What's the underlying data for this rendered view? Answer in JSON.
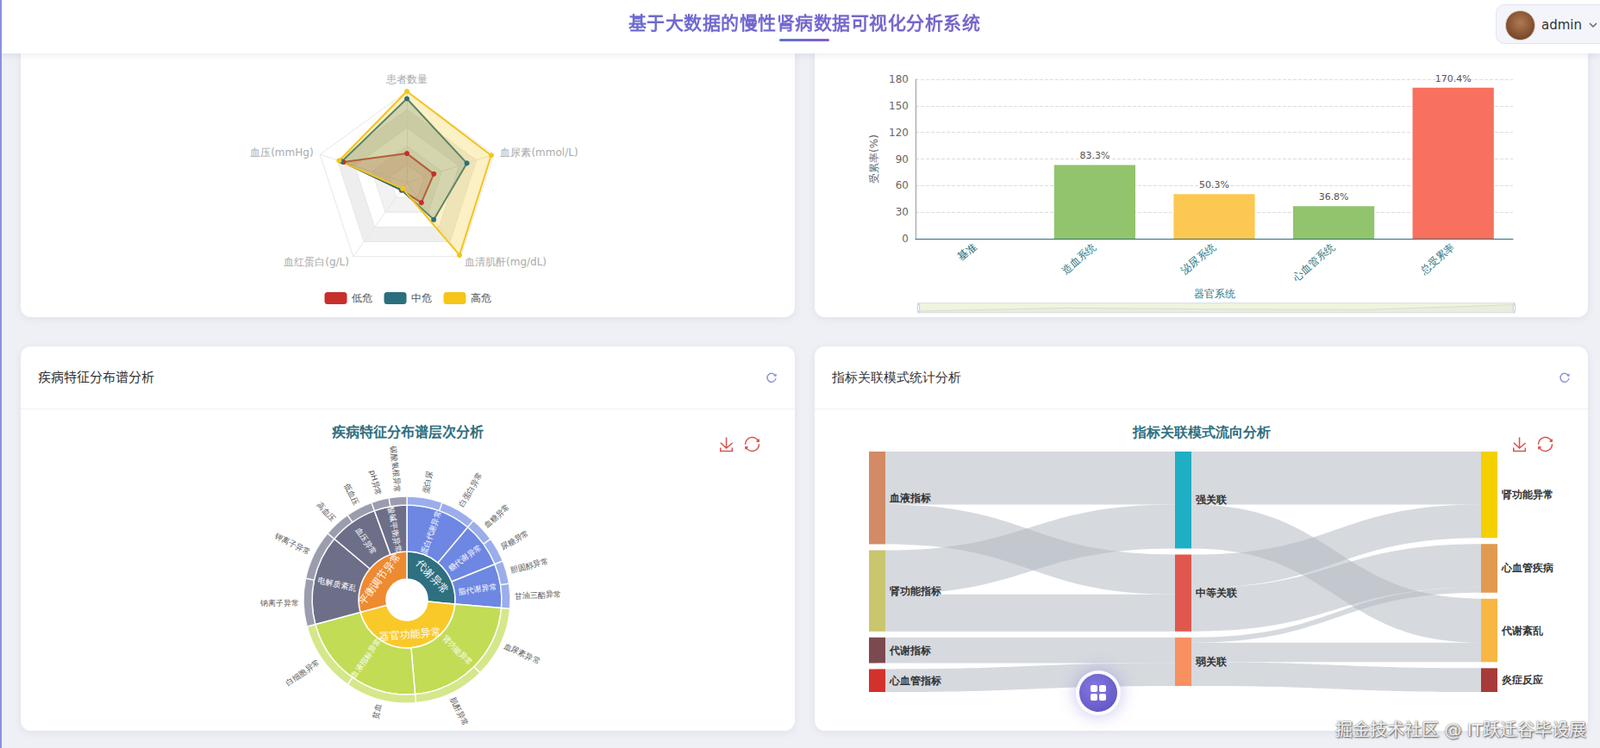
{
  "header": {
    "title": "基于大数据的慢性肾病数据可视化分析系统",
    "user": "admin"
  },
  "watermark": "掘金技术社区 @ IT跃迁谷毕设展",
  "chart_data": [
    {
      "type": "radar",
      "indicators": [
        {
          "name": "患者数量",
          "max": 100
        },
        {
          "name": "血压(mmHg)",
          "max": 200
        },
        {
          "name": "血红蛋白(g/L)",
          "max": 200
        },
        {
          "name": "血清肌酐(mg/dL)",
          "max": 10
        },
        {
          "name": "血尿素(mmol/L)",
          "max": 40
        }
      ],
      "series": [
        {
          "name": "低危",
          "color": "#c62f2b",
          "values": [
            32,
            146,
            20,
            2.7,
            12.4
          ]
        },
        {
          "name": "中危",
          "color": "#2b6f7e",
          "values": [
            92,
            150,
            20,
            5.0,
            27.6
          ]
        },
        {
          "name": "高危",
          "color": "#f5c518",
          "values": [
            100,
            156,
            16,
            9.8,
            38.8
          ]
        }
      ],
      "legend": "bottom"
    },
    {
      "type": "bar",
      "ylabel": "受累率(%)",
      "xlabel": "器官系统",
      "categories": [
        "基准",
        "造血系统",
        "泌尿系统",
        "心血管系统",
        "总受累率"
      ],
      "values": [
        0,
        83.3,
        50.3,
        36.8,
        170.4
      ],
      "value_labels": [
        null,
        "83.3%",
        "50.3%",
        "36.8%",
        "170.4%"
      ],
      "colors": [
        "#91c46c",
        "#91c46c",
        "#fcc852",
        "#91c46c",
        "#f7715e"
      ],
      "data_labels": true,
      "ylim": [
        0,
        180
      ],
      "yticks": [
        0,
        30,
        60,
        90,
        120,
        150,
        180
      ],
      "grid": true
    },
    {
      "type": "sunburst",
      "panel_title": "疾病特征分布谱分析",
      "title": "疾病特征分布谱层次分析",
      "data": [
        {
          "name": "代谢异常",
          "color": "#2e6f80",
          "children": [
            {
              "name": "蛋白代谢异常",
              "children": [
                {
                  "name": "蛋白尿",
                  "value": 20
                },
                {
                  "name": "白蛋白异常",
                  "value": 20
                }
              ]
            },
            {
              "name": "糖代谢异常",
              "children": [
                {
                  "name": "血糖异常",
                  "value": 14
                },
                {
                  "name": "尿糖异常",
                  "value": 14
                }
              ]
            },
            {
              "name": "脂代谢异常",
              "children": [
                {
                  "name": "胆固醇异常",
                  "value": 13
                },
                {
                  "name": "甘油三酯异常",
                  "value": 14
                }
              ]
            }
          ]
        },
        {
          "name": "器官功能异常",
          "color": "#f9c92a",
          "children": [
            {
              "name": "肾功能异常",
              "children": [
                {
                  "name": "血尿素异常",
                  "value": 40
                },
                {
                  "name": "肌酐异常",
                  "value": 40
                }
              ]
            },
            {
              "name": "血液指标异常",
              "children": [
                {
                  "name": "贫血",
                  "value": 40
                },
                {
                  "name": "白细胞异常",
                  "value": 40
                }
              ]
            }
          ]
        },
        {
          "name": "平衡调节异常",
          "color": "#ee8a30",
          "children": [
            {
              "name": "电解质紊乱",
              "children": [
                {
                  "name": "钠离子异常",
                  "value": 27
                },
                {
                  "name": "钾离子异常",
                  "value": 28
                }
              ]
            },
            {
              "name": "血压异常",
              "children": [
                {
                  "name": "高血压",
                  "value": 15
                },
                {
                  "name": "低血压",
                  "value": 15
                }
              ]
            },
            {
              "name": "酸碱平衡异常",
              "children": [
                {
                  "name": "pH异常",
                  "value": 10
                },
                {
                  "name": "碳酸氢根异常",
                  "value": 10
                }
              ]
            }
          ]
        }
      ]
    },
    {
      "type": "sankey",
      "panel_title": "指标关联模式统计分析",
      "title": "指标关联模式流向分析",
      "nodes": [
        {
          "name": "血液指标",
          "color": "#d28b65"
        },
        {
          "name": "肾功能指标",
          "color": "#c9c66e"
        },
        {
          "name": "代谢指标",
          "color": "#7b4a4f"
        },
        {
          "name": "心血管指标",
          "color": "#d3312c"
        },
        {
          "name": "强关联",
          "color": "#1eafc6"
        },
        {
          "name": "中等关联",
          "color": "#e0574d"
        },
        {
          "name": "弱关联",
          "color": "#f89060"
        },
        {
          "name": "肾功能异常",
          "color": "#f5d000"
        },
        {
          "name": "心血管疾病",
          "color": "#e19a50"
        },
        {
          "name": "代谢紊乱",
          "color": "#f8b644"
        },
        {
          "name": "炎症反应",
          "color": "#a83a3a"
        }
      ],
      "links": [
        {
          "source": "血液指标",
          "target": "强关联",
          "value": 60
        },
        {
          "source": "血液指标",
          "target": "中等关联",
          "value": 45
        },
        {
          "source": "肾功能指标",
          "target": "强关联",
          "value": 50
        },
        {
          "source": "肾功能指标",
          "target": "中等关联",
          "value": 42
        },
        {
          "source": "代谢指标",
          "target": "弱关联",
          "value": 29
        },
        {
          "source": "心血管指标",
          "target": "弱关联",
          "value": 26
        },
        {
          "source": "强关联",
          "target": "肾功能异常",
          "value": 60
        },
        {
          "source": "强关联",
          "target": "代谢紊乱",
          "value": 50
        },
        {
          "source": "中等关联",
          "target": "肾功能异常",
          "value": 38
        },
        {
          "source": "中等关联",
          "target": "心血管疾病",
          "value": 49
        },
        {
          "source": "弱关联",
          "target": "心血管疾病",
          "value": 6
        },
        {
          "source": "弱关联",
          "target": "代谢紊乱",
          "value": 22
        },
        {
          "source": "弱关联",
          "target": "炎症反应",
          "value": 27
        }
      ]
    }
  ]
}
